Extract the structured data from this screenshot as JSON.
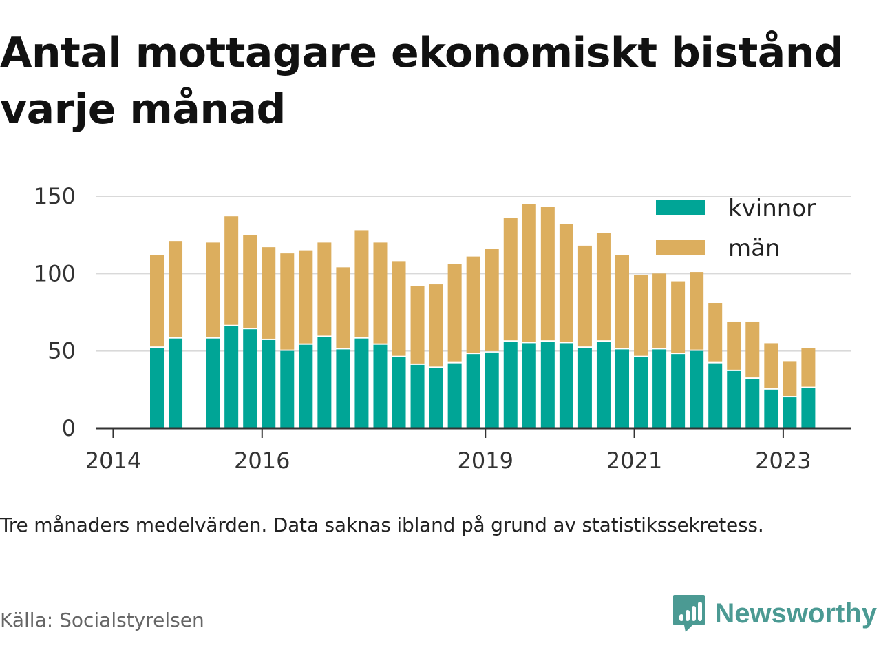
{
  "title": "Antal mottagare ekonomiskt bistånd varje månad",
  "note": "Tre månaders medelvärden. Data saknas ibland på grund av statistikssekretess.",
  "source": "Källa: Socialstyrelsen",
  "brand": "Newsworthy",
  "colors": {
    "kvinnor": "#00a596",
    "man": "#dcae5e",
    "grid": "#d9d9d9",
    "axis": "#333333",
    "brand": "#4b9a93"
  },
  "chart_data": {
    "type": "bar",
    "stacked": true,
    "x_tick_labels": [
      "2014",
      "2016",
      "2019",
      "2021",
      "2023"
    ],
    "y_ticks": [
      0,
      50,
      100,
      150
    ],
    "ylim": [
      0,
      155
    ],
    "grid": true,
    "legend_position": "top-right",
    "categories": [
      "2014 Q2",
      "2014 Q3",
      "2014 Q4",
      "2015 Q1",
      "2015 Q2",
      "2015 Q3",
      "2015 Q4",
      "2016 Q1",
      "2016 Q2",
      "2016 Q3",
      "2016 Q4",
      "2017 Q1",
      "2017 Q2",
      "2017 Q3",
      "2017 Q4",
      "2018 Q1",
      "2018 Q2",
      "2018 Q3",
      "2018 Q4",
      "2019 Q1",
      "2019 Q2",
      "2019 Q3",
      "2019 Q4",
      "2020 Q1",
      "2020 Q2",
      "2020 Q3",
      "2020 Q4",
      "2021 Q1",
      "2021 Q2",
      "2021 Q3",
      "2021 Q4",
      "2022 Q1",
      "2022 Q2",
      "2022 Q3",
      "2022 Q4",
      "2023 Q1"
    ],
    "series": [
      {
        "name": "kvinnor",
        "values": [
          52,
          58,
          null,
          58,
          66,
          64,
          57,
          50,
          54,
          59,
          51,
          58,
          54,
          46,
          41,
          39,
          42,
          48,
          49,
          56,
          55,
          56,
          55,
          52,
          56,
          51,
          46,
          51,
          48,
          50,
          42,
          37,
          32,
          25,
          20,
          26
        ]
      },
      {
        "name": "män",
        "values": [
          60,
          63,
          null,
          62,
          71,
          61,
          60,
          63,
          61,
          61,
          53,
          70,
          66,
          62,
          51,
          54,
          64,
          63,
          67,
          80,
          90,
          87,
          77,
          66,
          70,
          61,
          53,
          49,
          47,
          51,
          39,
          32,
          37,
          30,
          23,
          26
        ]
      }
    ]
  }
}
